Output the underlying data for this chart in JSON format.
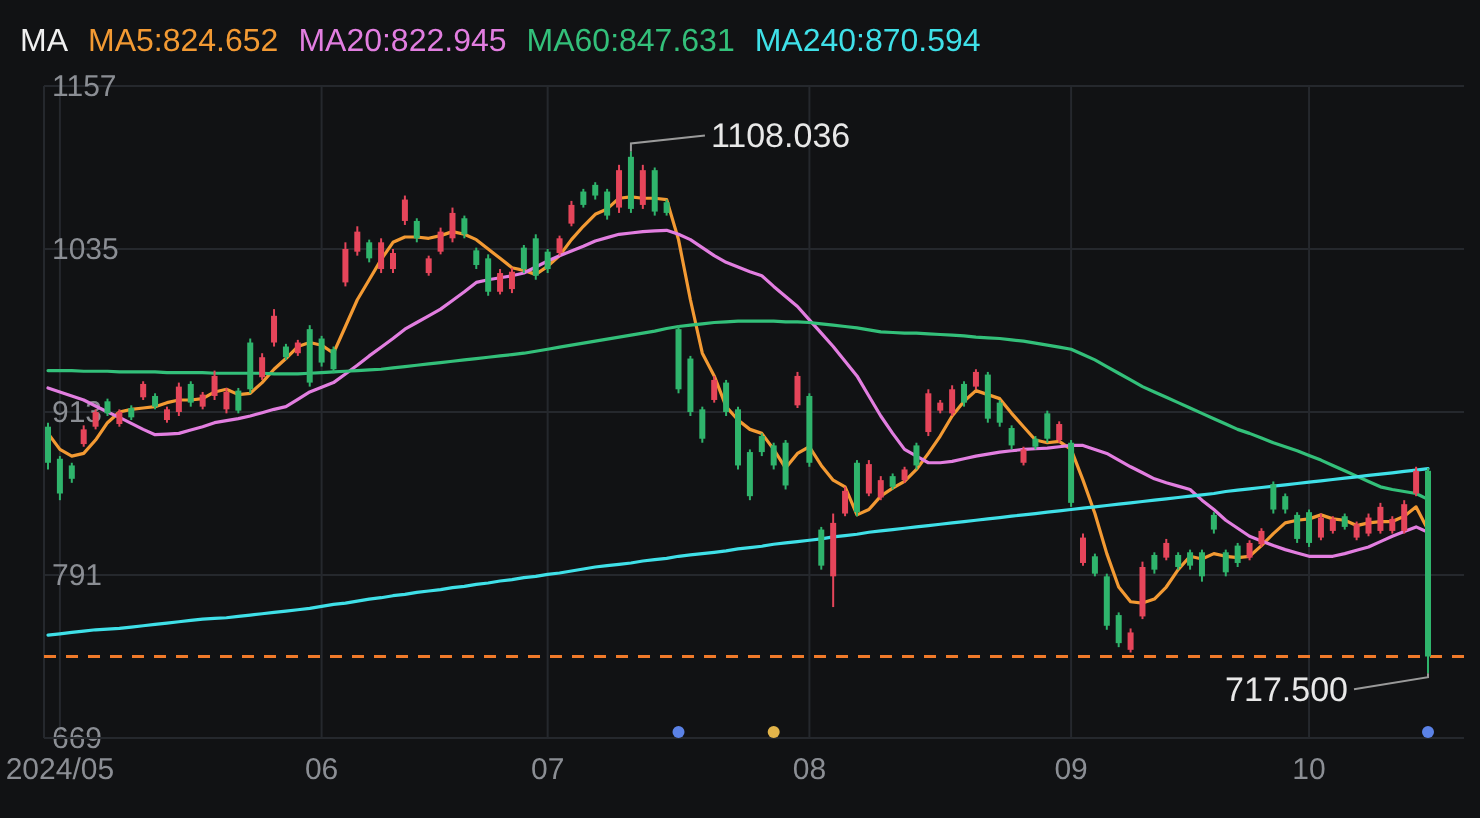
{
  "chart_data": {
    "type": "candlestick",
    "legend_title": "MA",
    "legend": "top left",
    "grid": true,
    "ylim": [
      669,
      1157
    ],
    "yticks": [
      669,
      791,
      913,
      1035,
      1157
    ],
    "categories": [
      null,
      "2024/05",
      null,
      null,
      null,
      null,
      null,
      null,
      null,
      null,
      null,
      null,
      null,
      null,
      null,
      null,
      null,
      null,
      null,
      null,
      null,
      null,
      null,
      "06",
      null,
      null,
      null,
      null,
      null,
      null,
      null,
      null,
      null,
      null,
      null,
      null,
      null,
      null,
      null,
      null,
      null,
      null,
      "07",
      null,
      null,
      null,
      null,
      null,
      null,
      null,
      null,
      null,
      null,
      null,
      null,
      null,
      null,
      null,
      null,
      null,
      null,
      null,
      null,
      null,
      "08",
      null,
      null,
      null,
      null,
      null,
      null,
      null,
      null,
      null,
      null,
      null,
      null,
      null,
      null,
      null,
      null,
      null,
      null,
      null,
      null,
      null,
      "09",
      null,
      null,
      null,
      null,
      null,
      null,
      null,
      null,
      null,
      null,
      null,
      null,
      null,
      null,
      null,
      null,
      null,
      null,
      null,
      "10",
      null,
      null,
      null,
      null,
      null,
      null,
      null,
      null,
      null,
      null
    ],
    "ohlc": [
      [
        902,
        905,
        870,
        875
      ],
      [
        878,
        880,
        847,
        852
      ],
      [
        873,
        875,
        860,
        863
      ],
      [
        889,
        903,
        887,
        900
      ],
      [
        902,
        915,
        900,
        913
      ],
      [
        921,
        923,
        910,
        912
      ],
      [
        904,
        915,
        902,
        913
      ],
      [
        916,
        918,
        907,
        909
      ],
      [
        924,
        936,
        922,
        934
      ],
      [
        925,
        927,
        915,
        917
      ],
      [
        907,
        917,
        905,
        915
      ],
      [
        913,
        935,
        910,
        932
      ],
      [
        934,
        936,
        917,
        920
      ],
      [
        917,
        928,
        915,
        926
      ],
      [
        925,
        944,
        922,
        940
      ],
      [
        915,
        931,
        912,
        928
      ],
      [
        929,
        931,
        912,
        914
      ],
      [
        965,
        968,
        927,
        930
      ],
      [
        939,
        957,
        937,
        954
      ],
      [
        965,
        990,
        962,
        985
      ],
      [
        962,
        964,
        952,
        954
      ],
      [
        957,
        967,
        955,
        965
      ],
      [
        975,
        978,
        932,
        935
      ],
      [
        968,
        970,
        947,
        950
      ],
      [
        960,
        962,
        942,
        945
      ],
      [
        1010,
        1040,
        1007,
        1035
      ],
      [
        1033,
        1052,
        1030,
        1048
      ],
      [
        1040,
        1042,
        1025,
        1028
      ],
      [
        1020,
        1043,
        1017,
        1040
      ],
      [
        1020,
        1035,
        1017,
        1032
      ],
      [
        1056,
        1075,
        1053,
        1072
      ],
      [
        1056,
        1058,
        1040,
        1043
      ],
      [
        1017,
        1030,
        1015,
        1028
      ],
      [
        1033,
        1051,
        1031,
        1048
      ],
      [
        1043,
        1066,
        1040,
        1062
      ],
      [
        1058,
        1060,
        1043,
        1046
      ],
      [
        1034,
        1036,
        1020,
        1023
      ],
      [
        1028,
        1031,
        1000,
        1003
      ],
      [
        1003,
        1020,
        1001,
        1017
      ],
      [
        1005,
        1021,
        1002,
        1018
      ],
      [
        1036,
        1038,
        1017,
        1020
      ],
      [
        1043,
        1046,
        1012,
        1015
      ],
      [
        1033,
        1035,
        1017,
        1020
      ],
      [
        1032,
        1045,
        1030,
        1043
      ],
      [
        1054,
        1071,
        1052,
        1068
      ],
      [
        1078,
        1080,
        1066,
        1068
      ],
      [
        1083,
        1085,
        1072,
        1075
      ],
      [
        1078,
        1080,
        1057,
        1060
      ],
      [
        1066,
        1098,
        1062,
        1094
      ],
      [
        1104,
        1108.036,
        1062,
        1065
      ],
      [
        1068,
        1098,
        1065,
        1094
      ],
      [
        1094,
        1096,
        1060,
        1063
      ],
      [
        1070,
        1072,
        1060,
        1062
      ],
      [
        975,
        978,
        927,
        930
      ],
      [
        953,
        955,
        910,
        913
      ],
      [
        915,
        917,
        890,
        893
      ],
      [
        922,
        940,
        920,
        937
      ],
      [
        935,
        937,
        910,
        913
      ],
      [
        915,
        917,
        870,
        873
      ],
      [
        883,
        885,
        847,
        850
      ],
      [
        895,
        897,
        880,
        883
      ],
      [
        888,
        890,
        870,
        873
      ],
      [
        890,
        892,
        855,
        858
      ],
      [
        918,
        943,
        916,
        940
      ],
      [
        925,
        927,
        872,
        875
      ],
      [
        825,
        827,
        795,
        798
      ],
      [
        790,
        837,
        767,
        830
      ],
      [
        837,
        857,
        835,
        854
      ],
      [
        875,
        877,
        835,
        838
      ],
      [
        852,
        877,
        850,
        874
      ],
      [
        849,
        865,
        847,
        862
      ],
      [
        865,
        867,
        855,
        857
      ],
      [
        862,
        872,
        860,
        870
      ],
      [
        888,
        890,
        870,
        873
      ],
      [
        898,
        930,
        895,
        927
      ],
      [
        914,
        922,
        912,
        920
      ],
      [
        912,
        933,
        910,
        930
      ],
      [
        934,
        936,
        917,
        920
      ],
      [
        932,
        945,
        930,
        943
      ],
      [
        941,
        943,
        905,
        908
      ],
      [
        920,
        922,
        902,
        905
      ],
      [
        901,
        903,
        885,
        888
      ],
      [
        875,
        887,
        873,
        885
      ],
      [
        893,
        895,
        885,
        887
      ],
      [
        912,
        914,
        890,
        893
      ],
      [
        892,
        906,
        890,
        904
      ],
      [
        890,
        892,
        842,
        845
      ],
      [
        800,
        822,
        798,
        819
      ],
      [
        805,
        807,
        790,
        792
      ],
      [
        790,
        792,
        750,
        753
      ],
      [
        761,
        763,
        737,
        740
      ],
      [
        735,
        751,
        733,
        748
      ],
      [
        760,
        801,
        758,
        797
      ],
      [
        806,
        808,
        792,
        795
      ],
      [
        804,
        818,
        802,
        815
      ],
      [
        806,
        808,
        795,
        797
      ],
      [
        808,
        810,
        795,
        798
      ],
      [
        808,
        810,
        786,
        790
      ],
      [
        836,
        838,
        822,
        825
      ],
      [
        808,
        810,
        790,
        793
      ],
      [
        813,
        815,
        797,
        800
      ],
      [
        804,
        817,
        802,
        815
      ],
      [
        814,
        826,
        812,
        824
      ],
      [
        859,
        861,
        837,
        840
      ],
      [
        850,
        852,
        837,
        840
      ],
      [
        836,
        838,
        815,
        818
      ],
      [
        838,
        840,
        812,
        815
      ],
      [
        819,
        837,
        817,
        834
      ],
      [
        824,
        835,
        822,
        833
      ],
      [
        835,
        837,
        825,
        827
      ],
      [
        819,
        831,
        817,
        829
      ],
      [
        822,
        837,
        820,
        834
      ],
      [
        824,
        845,
        822,
        842
      ],
      [
        824,
        835,
        822,
        833
      ],
      [
        824,
        847,
        822,
        844
      ],
      [
        852,
        872,
        850,
        869
      ],
      [
        869,
        871,
        717.5,
        730
      ]
    ],
    "colors": [
      "#2fb46c",
      "#2fb46c",
      "#2fb46c",
      "#e5455a",
      "#e5455a",
      "#2fb46c",
      "#e5455a",
      "#2fb46c",
      "#e5455a",
      "#2fb46c",
      "#e5455a",
      "#e5455a",
      "#2fb46c",
      "#e5455a",
      "#e5455a",
      "#e5455a",
      "#2fb46c",
      "#2fb46c",
      "#e5455a",
      "#e5455a",
      "#2fb46c",
      "#e5455a",
      "#2fb46c",
      "#2fb46c",
      "#2fb46c",
      "#e5455a",
      "#e5455a",
      "#2fb46c",
      "#e5455a",
      "#e5455a",
      "#e5455a",
      "#2fb46c",
      "#e5455a",
      "#e5455a",
      "#e5455a",
      "#2fb46c",
      "#2fb46c",
      "#2fb46c",
      "#e5455a",
      "#e5455a",
      "#2fb46c",
      "#2fb46c",
      "#2fb46c",
      "#e5455a",
      "#e5455a",
      "#2fb46c",
      "#2fb46c",
      "#2fb46c",
      "#e5455a",
      "#2fb46c",
      "#e5455a",
      "#2fb46c",
      "#2fb46c",
      "#2fb46c",
      "#2fb46c",
      "#2fb46c",
      "#e5455a",
      "#2fb46c",
      "#2fb46c",
      "#2fb46c",
      "#2fb46c",
      "#2fb46c",
      "#2fb46c",
      "#e5455a",
      "#2fb46c",
      "#2fb46c",
      "#e5455a",
      "#e5455a",
      "#2fb46c",
      "#e5455a",
      "#e5455a",
      "#2fb46c",
      "#e5455a",
      "#2fb46c",
      "#e5455a",
      "#e5455a",
      "#e5455a",
      "#2fb46c",
      "#e5455a",
      "#2fb46c",
      "#2fb46c",
      "#2fb46c",
      "#e5455a",
      "#2fb46c",
      "#2fb46c",
      "#e5455a",
      "#2fb46c",
      "#e5455a",
      "#2fb46c",
      "#2fb46c",
      "#2fb46c",
      "#e5455a",
      "#e5455a",
      "#2fb46c",
      "#e5455a",
      "#2fb46c",
      "#2fb46c",
      "#2fb46c",
      "#2fb46c",
      "#2fb46c",
      "#2fb46c",
      "#e5455a",
      "#e5455a",
      "#2fb46c",
      "#2fb46c",
      "#2fb46c",
      "#2fb46c",
      "#e5455a",
      "#e5455a",
      "#2fb46c",
      "#e5455a",
      "#e5455a",
      "#e5455a",
      "#e5455a",
      "#e5455a",
      "#e5455a",
      "#2fb46c"
    ],
    "series": [
      {
        "name": "MA5:824.652",
        "type": "line",
        "color": "#f39a33",
        "values": [
          897,
          885,
          880,
          882,
          892,
          905,
          913,
          915,
          916,
          917,
          920,
          922,
          922,
          923,
          928,
          930,
          926,
          927,
          935,
          945,
          953,
          962,
          965,
          963,
          957,
          977,
          997,
          1012,
          1027,
          1040,
          1044,
          1044,
          1043,
          1045,
          1048,
          1046,
          1042,
          1035,
          1028,
          1021,
          1019,
          1016,
          1022,
          1030,
          1042,
          1052,
          1061,
          1065,
          1073,
          1074,
          1073,
          1073,
          1072,
          1042,
          997,
          957,
          940,
          917,
          907,
          900,
          897,
          885,
          871,
          882,
          887,
          873,
          862,
          857,
          836,
          840,
          850,
          856,
          861,
          870,
          882,
          895,
          910,
          921,
          929,
          926,
          923,
          912,
          902,
          892,
          890,
          891,
          885,
          862,
          837,
          807,
          782,
          771,
          770,
          773,
          782,
          795,
          805,
          803,
          807,
          805,
          804,
          805,
          813,
          822,
          830,
          832,
          833,
          836,
          833,
          832,
          828,
          830,
          831,
          831,
          835,
          842,
          824.652
        ]
      },
      {
        "name": "MA20:822.945",
        "type": "line",
        "color": "#e27ee0",
        "values": [
          931,
          928,
          925,
          922,
          917.5,
          913,
          909,
          904.5,
          900,
          896,
          896.5,
          897,
          899.5,
          902,
          905,
          906.5,
          908,
          910,
          912.5,
          915,
          917,
          922.5,
          928,
          931.5,
          935,
          941.5,
          948,
          955,
          961.5,
          968,
          975,
          980,
          985,
          990,
          996.5,
          1003,
          1010,
          1012,
          1013.5,
          1015,
          1017,
          1021.5,
          1026,
          1030,
          1033.5,
          1037,
          1041,
          1043.5,
          1046,
          1047,
          1048,
          1048.5,
          1049,
          1046,
          1042,
          1036,
          1030,
          1025,
          1021.5,
          1018,
          1015,
          1007,
          999.5,
          992,
          982,
          972,
          962,
          951,
          940,
          925,
          910,
          897,
          885,
          880,
          875,
          875,
          876,
          878,
          880,
          881.5,
          883,
          884,
          885,
          885.5,
          886,
          887,
          888,
          888,
          885,
          882,
          877,
          872,
          867.5,
          863,
          860,
          857.5,
          855,
          847,
          840,
          832,
          826,
          820,
          816.5,
          813,
          810,
          807.5,
          805,
          805,
          805,
          807,
          809.5,
          812,
          816,
          820,
          823.5,
          827,
          822.945
        ]
      },
      {
        "name": "MA60:847.631",
        "type": "line",
        "color": "#33c07a",
        "values": [
          944,
          944,
          944,
          943.5,
          943.5,
          943.5,
          943,
          943,
          943,
          943,
          942.5,
          942.5,
          942.5,
          942.5,
          942,
          942,
          942,
          942,
          942,
          941.5,
          941.5,
          941.5,
          942,
          942.5,
          943,
          943.5,
          944,
          944.5,
          945,
          946,
          947,
          948,
          949,
          950,
          951,
          952,
          953,
          954,
          955,
          956,
          957,
          958.5,
          960,
          961.5,
          963,
          964.5,
          966,
          967.5,
          969,
          970.5,
          972,
          973.5,
          975.5,
          977,
          978,
          979,
          980,
          980.5,
          981,
          981,
          981,
          981,
          980.5,
          980.5,
          980,
          979,
          978,
          977,
          976,
          974.5,
          973,
          972.5,
          972,
          972,
          971.5,
          971,
          970.5,
          970,
          969,
          968.5,
          968,
          967,
          966,
          964.5,
          963,
          961.5,
          960,
          956,
          952,
          947,
          942,
          937,
          932,
          928,
          924,
          920,
          916,
          912,
          908,
          904,
          900,
          897,
          893.5,
          890,
          887,
          884,
          880.5,
          877,
          873,
          869,
          865,
          861,
          857,
          855,
          853.5,
          852,
          847.631
        ]
      },
      {
        "name": "MA240:870.594",
        "type": "line",
        "color": "#3fe0e8",
        "values": [
          746,
          747,
          748,
          749,
          750,
          750.5,
          751,
          752,
          753,
          754,
          755,
          756,
          757,
          758,
          758.5,
          759,
          760,
          761,
          762,
          763,
          764,
          765,
          766,
          767.5,
          769,
          770,
          771.5,
          773,
          774,
          775.5,
          776.5,
          778,
          779,
          780,
          781.5,
          782.5,
          784,
          785,
          786.5,
          787.5,
          789,
          790,
          791.5,
          792.5,
          794,
          795.5,
          797,
          798,
          799,
          800,
          801.5,
          802.5,
          803.5,
          805,
          806,
          807,
          808,
          809,
          810.5,
          811.5,
          812.5,
          814,
          815,
          816,
          817,
          818,
          819.5,
          820.5,
          821.5,
          823,
          824,
          825,
          826,
          827,
          828,
          829,
          830,
          831,
          832,
          833,
          834,
          835,
          836,
          837,
          838,
          839,
          840,
          841,
          842,
          843,
          844,
          845,
          846,
          847,
          848,
          849,
          850,
          851,
          852,
          853.5,
          854.5,
          855.5,
          856.5,
          857.5,
          858.5,
          859.5,
          860.5,
          861.5,
          862.5,
          863.5,
          864.5,
          865.5,
          866.5,
          867.5,
          868.5,
          869.5,
          870.594
        ]
      }
    ],
    "ref_lines": [
      {
        "axis": "y",
        "value": 730,
        "color": "#f07a2a",
        "line_style": "dashed"
      }
    ],
    "annotations": [
      "1108.036",
      "717.500"
    ]
  }
}
